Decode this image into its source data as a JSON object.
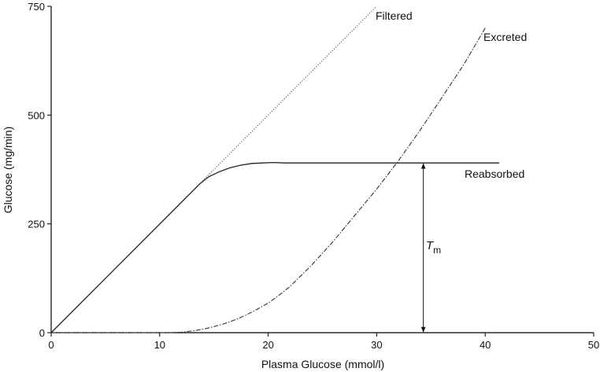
{
  "chart_data": {
    "type": "line",
    "xlabel": "Plasma Glucose (mmol/l)",
    "ylabel": "Glucose (mg/min)",
    "xlim": [
      0,
      50
    ],
    "ylim": [
      0,
      750
    ],
    "xticks": [
      0,
      10,
      20,
      30,
      40,
      50
    ],
    "yticks": [
      0,
      250,
      500,
      750
    ],
    "grid": false,
    "series": [
      {
        "name": "Filtered",
        "style": "dotted",
        "color": "#444444",
        "x": [
          0,
          30
        ],
        "y": [
          0,
          750
        ]
      },
      {
        "name": "Reabsorbed",
        "style": "solid",
        "color": "#222222",
        "x": [
          0,
          13.7,
          14.5,
          15.5,
          16.5,
          17.5,
          18.5,
          19.5,
          20.5,
          21.5,
          25,
          30,
          35,
          41.3
        ],
        "y": [
          0,
          342,
          358,
          370,
          379,
          385,
          389,
          390,
          391,
          390,
          390,
          390,
          390,
          390
        ]
      },
      {
        "name": "Excreted",
        "style": "dash-dot",
        "color": "#333333",
        "x": [
          0,
          11,
          12,
          13,
          14,
          15,
          16,
          17,
          18,
          19,
          20,
          21,
          22,
          24,
          26,
          28,
          30,
          32,
          34,
          36,
          38,
          40
        ],
        "y": [
          0,
          0,
          1,
          4,
          8,
          14,
          21,
          30,
          41,
          54,
          68,
          86,
          106,
          155,
          210,
          270,
          330,
          395,
          465,
          540,
          615,
          700
        ]
      }
    ],
    "labels": {
      "filtered": "Filtered",
      "excreted": "Excreted",
      "reabsorbed": "Reabsorbed",
      "tm_main": "T",
      "tm_sub": "m"
    },
    "annotations": {
      "tm_arrow": {
        "x": 34.3,
        "y_from": 0,
        "y_to": 390
      }
    }
  }
}
